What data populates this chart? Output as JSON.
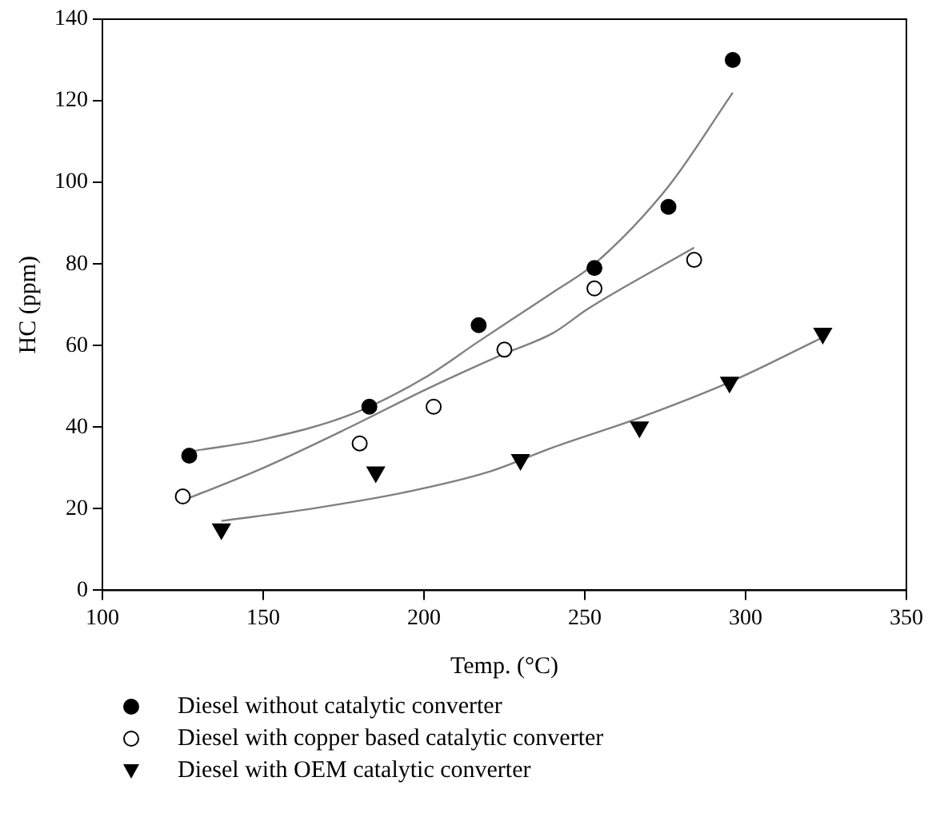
{
  "chart_data": {
    "type": "scatter",
    "xlabel": "Temp. (°C)",
    "ylabel": "HC (ppm)",
    "xlim": [
      100,
      350
    ],
    "xticks": [
      100,
      150,
      200,
      250,
      300,
      350
    ],
    "ylim": [
      0,
      140
    ],
    "yticks": [
      0,
      20,
      40,
      60,
      80,
      100,
      120,
      140
    ],
    "grid": false,
    "legend": "bottom",
    "series": [
      {
        "name": "Diesel without catalytic converter",
        "color": "#000000",
        "marker": "circle",
        "x": [
          127,
          183,
          217,
          253,
          276,
          296
        ],
        "values": [
          33,
          45,
          65,
          79,
          94,
          130
        ]
      },
      {
        "name": "Diesel with copper based catalytic converter",
        "color": "#ffffff",
        "marker": "circle",
        "x": [
          125,
          180,
          203,
          225,
          253,
          284
        ],
        "values": [
          23,
          36,
          45,
          59,
          74,
          81
        ]
      },
      {
        "name": "Diesel with OEM catalytic converter",
        "color": "#000000",
        "marker": "triangle",
        "x": [
          137,
          185,
          230,
          267,
          295,
          324
        ],
        "values": [
          15,
          29,
          32,
          40,
          51,
          63
        ]
      },
      {
        "type": "line",
        "color": "#808080",
        "marker": "none",
        "x": [
          127,
          150,
          177,
          200,
          217,
          240,
          253,
          276,
          296
        ],
        "values": [
          34,
          37,
          43,
          52,
          61,
          73,
          80,
          99,
          122
        ]
      },
      {
        "type": "line",
        "color": "#808080",
        "marker": "none",
        "x": [
          125,
          150,
          177,
          200,
          225,
          240,
          251,
          284
        ],
        "values": [
          22,
          30,
          40,
          49,
          58,
          63,
          69,
          84
        ]
      },
      {
        "type": "line",
        "color": "#808080",
        "marker": "none",
        "x": [
          137,
          165,
          194,
          220,
          240,
          266,
          295,
          324
        ],
        "values": [
          17,
          20,
          24,
          29,
          35,
          42,
          51,
          62
        ]
      }
    ]
  }
}
